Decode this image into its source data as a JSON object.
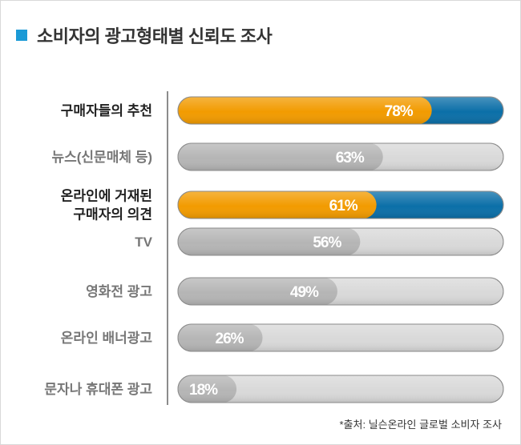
{
  "title": "소비자의 광고형태별 신뢰도 조사",
  "source": "*출처: 닐슨온라인 글로벌 소비자 조사",
  "colors": {
    "highlight": "#f29b00",
    "highlight_end": "#0b6fa8",
    "normal_fill": "#b5b5b5",
    "track": "#d9d9d9",
    "title_marker": "#1b9ad6"
  },
  "chart_data": {
    "type": "bar",
    "orientation": "horizontal",
    "xlim": [
      0,
      100
    ],
    "categories": [
      [
        "구매자들의 추천"
      ],
      [
        "뉴스(신문매체 등)"
      ],
      [
        "온라인에 거재된",
        "구매자의 의견"
      ],
      [
        "TV"
      ],
      [
        "영화전 광고"
      ],
      [
        "온라인 배너광고"
      ],
      [
        "문자나 휴대폰 광고"
      ]
    ],
    "values": [
      78,
      63,
      61,
      56,
      49,
      26,
      18
    ],
    "value_labels": [
      "78%",
      "63%",
      "61%",
      "56%",
      "49%",
      "26%",
      "18%"
    ],
    "highlighted": [
      true,
      false,
      true,
      false,
      false,
      false,
      false
    ]
  }
}
